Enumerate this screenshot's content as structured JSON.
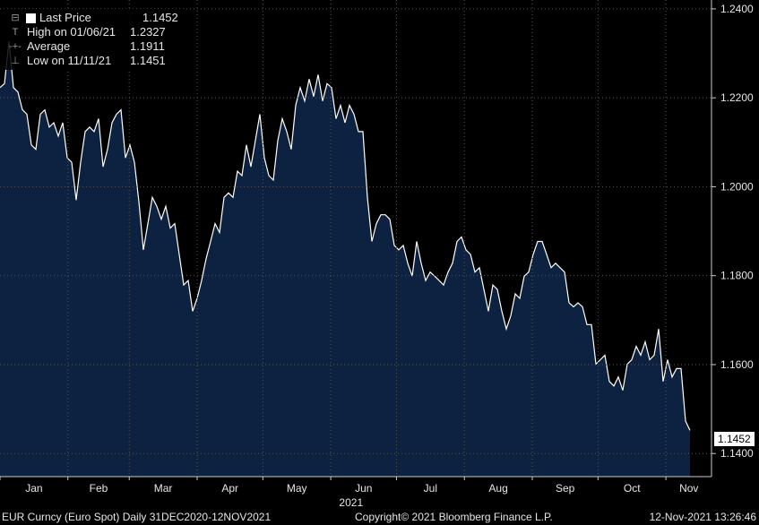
{
  "legend": [
    {
      "icon": "square-icon",
      "label": "Last Price",
      "value": "1.1452"
    },
    {
      "icon": "high-marker-icon",
      "label": "High on 01/06/21",
      "value": "1.2327"
    },
    {
      "icon": "average-marker-icon",
      "label": "Average",
      "value": "1.1911"
    },
    {
      "icon": "low-marker-icon",
      "label": "Low on 11/11/21",
      "value": "1.1451"
    }
  ],
  "last_price_label": "1.1452",
  "footer": {
    "left": "EUR Curncy (Euro Spot)  Daily 31DEC2020-12NOV2021",
    "center": "Copyright© 2021 Bloomberg Finance L.P.",
    "right": "12-Nov-2021 13:26:46"
  },
  "colors": {
    "fill": "#0c2240",
    "line": "#ffffff",
    "grid": "#555555",
    "background": "#000000"
  },
  "chart_data": {
    "type": "area",
    "title": "EUR Curncy (Euro Spot)",
    "year_label": "2021",
    "x_span_days": 315,
    "months": [
      {
        "label": "Jan",
        "start_day": 0
      },
      {
        "label": "Feb",
        "start_day": 31
      },
      {
        "label": "Mar",
        "start_day": 59
      },
      {
        "label": "Apr",
        "start_day": 90
      },
      {
        "label": "May",
        "start_day": 120
      },
      {
        "label": "Jun",
        "start_day": 151
      },
      {
        "label": "Jul",
        "start_day": 181
      },
      {
        "label": "Aug",
        "start_day": 212
      },
      {
        "label": "Sep",
        "start_day": 243
      },
      {
        "label": "Oct",
        "start_day": 273
      },
      {
        "label": "Nov",
        "start_day": 304
      }
    ],
    "ylim": [
      1.1348,
      1.242
    ],
    "yticks": [
      "1.1400",
      "1.1600",
      "1.1800",
      "1.2000",
      "1.2200",
      "1.2400"
    ],
    "grid": true,
    "axis_position": "right",
    "series": [
      {
        "name": "Last Price",
        "values": [
          1.2223,
          1.2232,
          1.2327,
          1.2223,
          1.2213,
          1.2173,
          1.2163,
          1.2094,
          1.2084,
          1.2163,
          1.2173,
          1.2134,
          1.2144,
          1.2114,
          1.2144,
          1.2065,
          1.2055,
          1.197,
          1.2055,
          1.2124,
          1.2134,
          1.2124,
          1.2153,
          1.2045,
          1.2084,
          1.2144,
          1.2163,
          1.2173,
          1.2065,
          1.2094,
          1.2055,
          1.1966,
          1.1858,
          1.1917,
          1.1976,
          1.1956,
          1.1927,
          1.1956,
          1.1907,
          1.1917,
          1.1848,
          1.1779,
          1.1789,
          1.172,
          1.1749,
          1.1789,
          1.1838,
          1.1877,
          1.1917,
          1.1897,
          1.1976,
          1.1986,
          1.1976,
          1.2035,
          1.2025,
          1.2094,
          1.2045,
          1.2104,
          1.2163,
          1.2065,
          1.2025,
          1.2015,
          1.2104,
          1.2153,
          1.2124,
          1.2084,
          1.2183,
          1.2223,
          1.2193,
          1.2242,
          1.2203,
          1.2252,
          1.2193,
          1.2232,
          1.2223,
          1.2153,
          1.2183,
          1.2144,
          1.2183,
          1.2163,
          1.2124,
          1.2124,
          1.1976,
          1.1877,
          1.1917,
          1.1937,
          1.1937,
          1.1927,
          1.1868,
          1.1858,
          1.1868,
          1.1828,
          1.1799,
          1.1877,
          1.1828,
          1.1789,
          1.1808,
          1.1799,
          1.1789,
          1.1779,
          1.1808,
          1.1828,
          1.1877,
          1.1887,
          1.1858,
          1.1848,
          1.1808,
          1.1818,
          1.1769,
          1.172,
          1.1779,
          1.1769,
          1.172,
          1.168,
          1.171,
          1.1759,
          1.1749,
          1.1799,
          1.1808,
          1.1848,
          1.1877,
          1.1877,
          1.1848,
          1.1818,
          1.1828,
          1.1818,
          1.1808,
          1.1739,
          1.173,
          1.1739,
          1.173,
          1.169,
          1.169,
          1.1601,
          1.1611,
          1.1621,
          1.1562,
          1.1552,
          1.1572,
          1.1542,
          1.1601,
          1.1611,
          1.1641,
          1.1621,
          1.1651,
          1.1611,
          1.1621,
          1.168,
          1.1562,
          1.1611,
          1.1572,
          1.1591,
          1.1591,
          1.1473,
          1.1452
        ]
      }
    ]
  }
}
